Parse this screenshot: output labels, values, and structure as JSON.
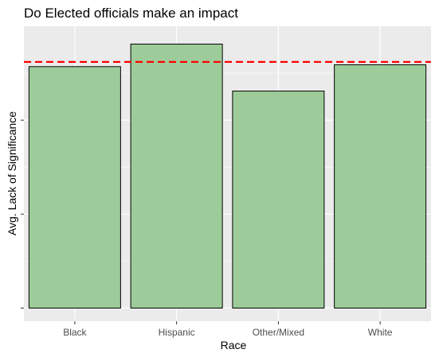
{
  "chart_data": {
    "type": "bar",
    "title": "Do Elected officials make an impact",
    "xlabel": "Race",
    "ylabel": "Avg. Lack of Significance",
    "categories": [
      "Black",
      "Hispanic",
      "Other/Mixed",
      "White"
    ],
    "values": [
      2.57,
      2.81,
      2.31,
      2.59
    ],
    "ylim": [
      -0.14,
      3.0
    ],
    "yticks": [
      0,
      1,
      2
    ],
    "ytick_labels": [
      "",
      "",
      ""
    ],
    "reference_line": {
      "value": 2.62,
      "style": "dashed",
      "color": "#ff0000"
    },
    "grid": true,
    "legend": "none",
    "colors": {
      "bar_fill": "#9dcc9a",
      "bar_stroke": "#000000",
      "panel_background": "#ebebeb",
      "grid": "#ffffff"
    }
  }
}
